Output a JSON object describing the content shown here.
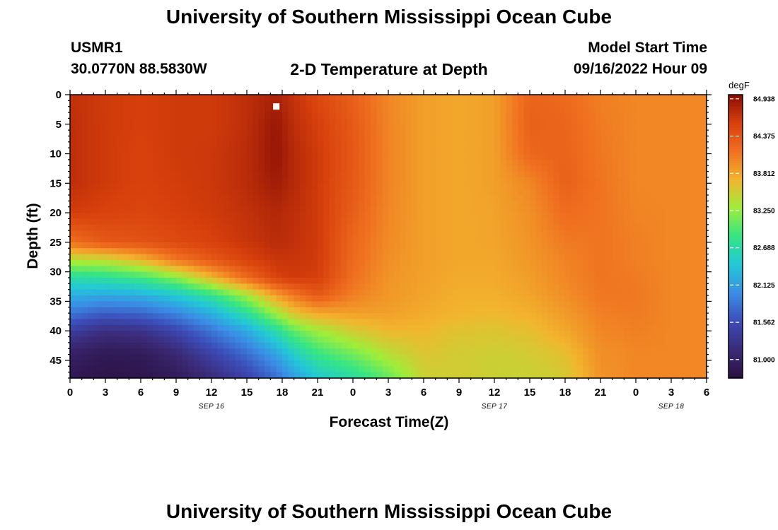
{
  "page": {
    "title_top": "University of Southern Mississippi Ocean Cube",
    "title_bottom": "University of Southern Mississippi Ocean Cube",
    "station_id": "USMR1",
    "station_coords": "30.0770N  88.5830W",
    "subtitle": "2-D Temperature at Depth",
    "model_label": "Model Start Time",
    "model_time": "09/16/2022 Hour 09"
  },
  "colors": {
    "ramp": [
      "#2a1040",
      "#3b2a78",
      "#3c4cb8",
      "#3a8ee6",
      "#22c8d8",
      "#35e585",
      "#9eee3a",
      "#f2b52e",
      "#f07020",
      "#d8400c",
      "#8a0e05"
    ]
  },
  "chart_data": {
    "type": "heatmap",
    "title": "2-D Temperature at Depth",
    "xlabel": "Forecast Time(Z)",
    "ylabel": "Depth (ft)",
    "x_range_hours": [
      0,
      54
    ],
    "y_range_ft": [
      0,
      48
    ],
    "x_tick_labels": [
      "0",
      "3",
      "6",
      "9",
      "12",
      "15",
      "18",
      "21",
      "0",
      "3",
      "6",
      "9",
      "12",
      "15",
      "18",
      "21",
      "0",
      "3",
      "6"
    ],
    "y_tick_labels": [
      "0",
      "5",
      "10",
      "15",
      "20",
      "25",
      "30",
      "35",
      "40",
      "45"
    ],
    "day_labels": [
      {
        "label": "SEP 16",
        "hour": 12
      },
      {
        "label": "SEP 17",
        "hour": 36
      },
      {
        "label": "SEP 18",
        "hour": 51
      }
    ],
    "colorbar": {
      "unit": "degF",
      "range": [
        80.72,
        85.0
      ],
      "tick_labels": [
        "84.938",
        "84.375",
        "83.812",
        "83.250",
        "82.688",
        "82.125",
        "81.562",
        "81.000"
      ],
      "tick_values": [
        84.938,
        84.375,
        83.812,
        83.25,
        82.688,
        82.125,
        81.562,
        81.0
      ]
    },
    "marker": {
      "hour": 17.5,
      "depth_ft": 2
    },
    "field_description": "surface layer ~84.7 degF for first 18 h, cold bottom layer 81-82 degF below ~30 ft early, warm core peak 84.94 near hour 17-18, then mixing to ~83.5-84 degF",
    "grid": {
      "hours": [
        0,
        3,
        6,
        9,
        12,
        15,
        17.5,
        19,
        21,
        24,
        27,
        30,
        33,
        36,
        39,
        42,
        45,
        48,
        51,
        54
      ],
      "depths_ft": [
        0,
        5,
        10,
        15,
        20,
        25,
        28,
        31,
        34,
        37,
        40,
        44,
        48
      ],
      "values": [
        [
          84.7,
          84.62,
          84.58,
          84.62,
          84.62,
          84.72,
          84.82,
          84.68,
          84.5,
          84.28,
          84.0,
          83.85,
          83.8,
          83.85,
          84.25,
          84.2,
          84.05,
          84.0,
          84.0,
          84.0
        ],
        [
          84.72,
          84.62,
          84.58,
          84.62,
          84.62,
          84.72,
          84.92,
          84.72,
          84.58,
          84.34,
          84.02,
          83.85,
          83.8,
          83.85,
          84.28,
          84.24,
          84.08,
          84.0,
          84.0,
          84.0
        ],
        [
          84.72,
          84.62,
          84.56,
          84.62,
          84.64,
          84.74,
          84.94,
          84.76,
          84.62,
          84.36,
          84.02,
          83.85,
          83.8,
          83.85,
          84.22,
          84.26,
          84.1,
          84.0,
          84.0,
          84.0
        ],
        [
          84.72,
          84.62,
          84.56,
          84.6,
          84.64,
          84.74,
          84.88,
          84.76,
          84.62,
          84.34,
          84.02,
          83.85,
          83.8,
          83.85,
          84.0,
          84.28,
          84.12,
          84.0,
          84.0,
          84.0
        ],
        [
          84.6,
          84.56,
          84.52,
          84.58,
          84.62,
          84.7,
          84.78,
          84.72,
          84.62,
          84.3,
          84.0,
          83.85,
          83.8,
          83.83,
          83.95,
          84.18,
          84.12,
          84.02,
          84.0,
          84.0
        ],
        [
          84.15,
          84.35,
          84.4,
          84.48,
          84.56,
          84.66,
          84.74,
          84.7,
          84.62,
          84.22,
          83.98,
          83.85,
          83.8,
          83.82,
          83.92,
          84.08,
          84.12,
          84.05,
          84.0,
          84.0
        ],
        [
          83.4,
          83.45,
          83.7,
          84.1,
          84.35,
          84.55,
          84.66,
          84.66,
          84.62,
          84.2,
          83.95,
          83.85,
          83.8,
          83.8,
          83.9,
          84.02,
          84.12,
          84.05,
          84.0,
          84.0
        ],
        [
          82.7,
          82.75,
          82.88,
          83.2,
          83.7,
          84.2,
          84.55,
          84.62,
          84.58,
          84.15,
          83.92,
          83.84,
          83.78,
          83.78,
          83.86,
          84.0,
          84.12,
          84.08,
          84.0,
          84.0
        ],
        [
          82.25,
          82.2,
          82.25,
          82.45,
          82.8,
          83.3,
          83.85,
          84.1,
          84.35,
          84.05,
          83.9,
          83.82,
          83.75,
          83.75,
          83.82,
          83.95,
          84.1,
          84.1,
          84.0,
          84.0
        ],
        [
          81.85,
          81.7,
          81.75,
          81.95,
          82.25,
          82.75,
          83.3,
          83.62,
          83.8,
          83.85,
          83.85,
          83.78,
          83.72,
          83.7,
          83.75,
          83.88,
          84.05,
          84.08,
          84.0,
          84.0
        ],
        [
          81.4,
          81.2,
          81.25,
          81.5,
          81.85,
          82.2,
          82.7,
          83.05,
          83.3,
          83.55,
          83.7,
          83.7,
          83.62,
          83.6,
          83.65,
          83.8,
          84.0,
          84.05,
          84.0,
          84.0
        ],
        [
          81.0,
          80.88,
          80.9,
          81.1,
          81.45,
          81.78,
          82.15,
          82.5,
          82.85,
          83.1,
          83.4,
          83.6,
          83.55,
          83.52,
          83.55,
          83.65,
          83.95,
          84.0,
          84.0,
          84.0
        ],
        [
          80.85,
          80.8,
          80.82,
          80.9,
          81.15,
          81.45,
          81.8,
          82.1,
          82.45,
          82.7,
          83.05,
          83.5,
          83.55,
          83.5,
          83.5,
          83.55,
          83.92,
          84.0,
          84.0,
          84.0
        ]
      ]
    }
  }
}
